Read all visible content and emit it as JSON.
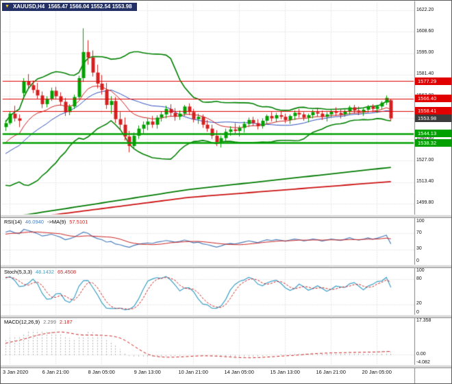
{
  "header": {
    "symbol": "XAUUSD,H4",
    "ohlc": "1565.47 1566.04 1552.54 1553.98",
    "dropdown_icon": "chevron-down"
  },
  "colors": {
    "candle_up": "#00a000",
    "candle_down": "#d42020",
    "bollinger": "#008000",
    "ma_blue": "#2f4fc0",
    "ma_red": "#d02020",
    "long_ma_green": "#007a00",
    "long_ma_red": "#cc1111",
    "hline_red": "#e00000",
    "hline_green": "#00a000",
    "badge_current_bg": "#3c3c3c",
    "rsi_main": "#4a7ebb",
    "rsi_signal": "#cc2222",
    "stoch_main": "#3aa0c8",
    "stoch_signal": "#cc2222",
    "macd_hist": "#b4b4b4",
    "macd_signal": "#cc2222",
    "grid": "#d2d2d2",
    "header_bg": "#223066",
    "header_triangle": "#f5c518"
  },
  "chart_data": {
    "type": "candlestick",
    "symbol": "XAUUSD",
    "timeframe": "H4",
    "price_axis": {
      "min": 1499.8,
      "max": 1622.2,
      "ticks": [
        "1622.20",
        "1608.60",
        "1595.00",
        "1581.40",
        "1567.80",
        "1554.20",
        "1540.60",
        "1527.00",
        "1513.40",
        "1499.80"
      ]
    },
    "time_axis": {
      "labels": [
        "3 Jan 2020",
        "6 Jan 21:00",
        "8 Jan 05:00",
        "9 Jan 13:00",
        "10 Jan 21:00",
        "14 Jan 05:00",
        "15 Jan 13:00",
        "16 Jan 21:00",
        "20 Jan 05:00"
      ],
      "bars": [
        1,
        11,
        21,
        31,
        41,
        51,
        61,
        71,
        81
      ]
    },
    "candles_ohlc": [
      [
        1548.5,
        1553,
        1546,
        1551
      ],
      [
        1551,
        1558.5,
        1550,
        1557
      ],
      [
        1557,
        1562,
        1552,
        1554
      ],
      [
        1554,
        1556.5,
        1548.5,
        1552.5
      ],
      [
        1570,
        1579.5,
        1568,
        1577.5
      ],
      [
        1577.5,
        1582,
        1573,
        1575
      ],
      [
        1575,
        1578,
        1570,
        1572
      ],
      [
        1572,
        1576.5,
        1566,
        1568.5
      ],
      [
        1568.5,
        1571,
        1560.5,
        1563
      ],
      [
        1563,
        1568,
        1561,
        1566.5
      ],
      [
        1566.5,
        1573.5,
        1565,
        1571.5
      ],
      [
        1571.5,
        1574,
        1566,
        1568
      ],
      [
        1568,
        1570.5,
        1562,
        1564.5
      ],
      [
        1564.5,
        1567,
        1555.5,
        1558
      ],
      [
        1558,
        1563,
        1556,
        1561.5
      ],
      [
        1561.5,
        1569,
        1560,
        1567.5
      ],
      [
        1567.5,
        1581,
        1566,
        1579.5
      ],
      [
        1579.5,
        1611,
        1577,
        1596
      ],
      [
        1596,
        1603.5,
        1588,
        1592.5
      ],
      [
        1592.5,
        1597,
        1580.5,
        1583
      ],
      [
        1583,
        1588,
        1573,
        1576
      ],
      [
        1576,
        1581.5,
        1569,
        1572
      ],
      [
        1572,
        1576.5,
        1560,
        1562.5
      ],
      [
        1562.5,
        1568,
        1557,
        1565
      ],
      [
        1565,
        1567.5,
        1551,
        1553.5
      ],
      [
        1553.5,
        1558,
        1547,
        1550
      ],
      [
        1550,
        1554.5,
        1540,
        1542.5
      ],
      [
        1542.5,
        1546,
        1532.5,
        1536.5
      ],
      [
        1536.5,
        1545,
        1534.5,
        1543
      ],
      [
        1543,
        1549.5,
        1541,
        1547.5
      ],
      [
        1547.5,
        1552,
        1544.5,
        1550
      ],
      [
        1550,
        1554,
        1546.5,
        1552
      ],
      [
        1552,
        1555.5,
        1548,
        1550
      ],
      [
        1550,
        1556,
        1547.5,
        1554.5
      ],
      [
        1554.5,
        1558.5,
        1552,
        1556.5
      ],
      [
        1556.5,
        1562,
        1554,
        1560
      ],
      [
        1560,
        1563,
        1555,
        1557.5
      ],
      [
        1557.5,
        1560.5,
        1552.5,
        1555
      ],
      [
        1555,
        1559,
        1553,
        1557
      ],
      [
        1557,
        1562.5,
        1555.5,
        1561.5
      ],
      [
        1561.5,
        1563.5,
        1556,
        1558
      ],
      [
        1558,
        1560,
        1551.5,
        1553.5
      ],
      [
        1553.5,
        1557,
        1550.5,
        1555
      ],
      [
        1555,
        1556.5,
        1548,
        1550
      ],
      [
        1550,
        1553,
        1545.5,
        1547.5
      ],
      [
        1547.5,
        1550,
        1541,
        1543
      ],
      [
        1543,
        1546.5,
        1536.5,
        1539
      ],
      [
        1539,
        1543,
        1535.5,
        1541.5
      ],
      [
        1541.5,
        1547.5,
        1539,
        1545.5
      ],
      [
        1545.5,
        1549,
        1543,
        1547
      ],
      [
        1547,
        1551,
        1544.5,
        1546
      ],
      [
        1546,
        1549.5,
        1542.5,
        1548
      ],
      [
        1548,
        1552,
        1545,
        1550.5
      ],
      [
        1550.5,
        1554.5,
        1548.5,
        1553
      ],
      [
        1553,
        1555,
        1549,
        1551
      ],
      [
        1551,
        1553.5,
        1547,
        1549
      ],
      [
        1549,
        1554,
        1547.5,
        1552.5
      ],
      [
        1552.5,
        1556.5,
        1550.5,
        1555.5
      ],
      [
        1555.5,
        1558,
        1552,
        1554
      ],
      [
        1554,
        1557.5,
        1551.5,
        1556
      ],
      [
        1556,
        1558.5,
        1553.5,
        1555
      ],
      [
        1555,
        1557,
        1551,
        1553
      ],
      [
        1553,
        1556.5,
        1550.5,
        1555.5
      ],
      [
        1555.5,
        1559,
        1553,
        1557.5
      ],
      [
        1557.5,
        1560,
        1554.5,
        1556.5
      ],
      [
        1556.5,
        1558,
        1552.5,
        1554.5
      ],
      [
        1554.5,
        1557,
        1551.5,
        1556
      ],
      [
        1556,
        1559.5,
        1554,
        1558
      ],
      [
        1558,
        1560.5,
        1555,
        1557
      ],
      [
        1557,
        1559,
        1553,
        1555
      ],
      [
        1555,
        1558,
        1552,
        1556.5
      ],
      [
        1556.5,
        1559.5,
        1554.5,
        1558.5
      ],
      [
        1558.5,
        1561,
        1555.5,
        1557.5
      ],
      [
        1557.5,
        1560,
        1554,
        1556.5
      ],
      [
        1556.5,
        1559.5,
        1555,
        1558.5
      ],
      [
        1558.5,
        1562,
        1556.5,
        1561
      ],
      [
        1561,
        1562.5,
        1557,
        1559
      ],
      [
        1559,
        1561.5,
        1556,
        1558
      ],
      [
        1558,
        1560.5,
        1555.5,
        1559.5
      ],
      [
        1559.5,
        1562.5,
        1557.5,
        1561.5
      ],
      [
        1561.5,
        1563,
        1558,
        1560
      ],
      [
        1560,
        1562.5,
        1557.5,
        1561.5
      ],
      [
        1561.5,
        1565,
        1559.5,
        1564
      ],
      [
        1564,
        1568.5,
        1562.5,
        1567
      ],
      [
        1565.47,
        1566.04,
        1552.54,
        1553.98
      ]
    ],
    "prehistory_closes": [
      1512,
      1514.5,
      1511.5,
      1515,
      1513,
      1516.5,
      1514.5,
      1517.5,
      1515.5,
      1519,
      1516.5,
      1520.5,
      1518,
      1522,
      1519.5,
      1524,
      1521.5,
      1526.5,
      1524,
      1529,
      1526.5,
      1532,
      1530,
      1536,
      1533.5,
      1539.5,
      1542,
      1545.5,
      1544,
      1548
    ],
    "hlines": [
      {
        "value": 1577.29,
        "color_key": "hline_red",
        "width": 1
      },
      {
        "value": 1566.4,
        "color_key": "hline_red",
        "width": 1
      },
      {
        "value": 1558.41,
        "color_key": "hline_red",
        "width": 1
      },
      {
        "value": 1544.13,
        "color_key": "hline_green",
        "width": 2.5
      },
      {
        "value": 1538.32,
        "color_key": "hline_green",
        "width": 2.5
      }
    ],
    "price_badges": [
      {
        "text": "1577.29",
        "value": 1577.29,
        "type": "red"
      },
      {
        "text": "1566.40",
        "value": 1566.4,
        "type": "red"
      },
      {
        "text": "1558.41",
        "value": 1558.41,
        "type": "red"
      },
      {
        "text": "1553.98",
        "value": 1553.98,
        "type": "current"
      },
      {
        "text": "1544.13",
        "value": 1544.13,
        "type": "green"
      },
      {
        "text": "1538.32",
        "value": 1538.32,
        "type": "green"
      }
    ],
    "current_price": 1553.98,
    "long_ma_green_points": [
      [
        0,
        1491
      ],
      [
        40,
        1509
      ],
      [
        84,
        1523
      ]
    ],
    "long_ma_red_points": [
      [
        0,
        1489
      ],
      [
        40,
        1504
      ],
      [
        84,
        1514
      ]
    ],
    "indicators": {
      "rsi": {
        "name": "RSI(14)",
        "value": "46.0940",
        "ma_name": "->MA(9)",
        "ma_value": "57.5101",
        "axis": [
          100,
          70,
          30,
          0
        ],
        "levels": [
          70,
          30
        ]
      },
      "stoch": {
        "name": "Stoch(5,3,3)",
        "value": "48.1432",
        "signal_value": "65.4508",
        "axis": [
          100,
          80,
          20,
          0
        ],
        "levels": [
          80,
          20
        ]
      },
      "macd": {
        "name": "MACD(12,26,9)",
        "value": "2.299",
        "signal_value": "2.187",
        "axis_labels": [
          "17.358",
          "0.00",
          "-4.082"
        ],
        "max": 17.358,
        "min": -4.082
      }
    }
  }
}
